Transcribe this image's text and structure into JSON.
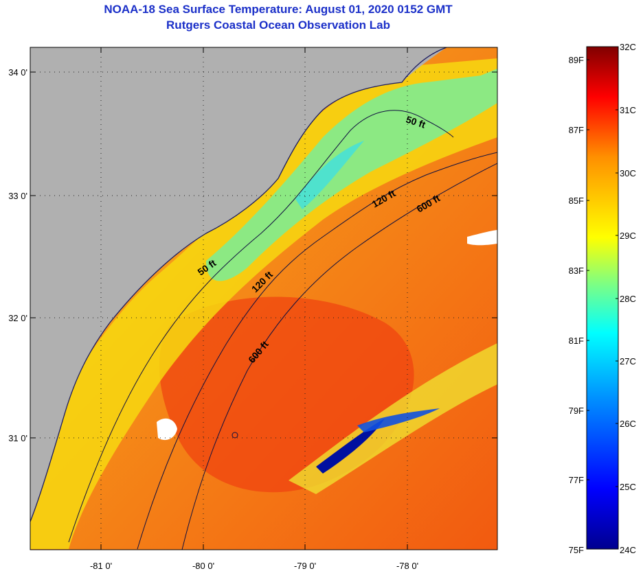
{
  "title": {
    "line1": "NOAA-18 Sea Surface Temperature:  August 01, 2020 0152 GMT",
    "line2": "Rutgers Coastal Ocean Observation Lab"
  },
  "map": {
    "lat_labels": [
      "34 0'",
      "33 0'",
      "32 0'",
      "31 0'"
    ],
    "lon_labels": [
      "-81 0'",
      "-80 0'",
      "-79 0'",
      "-78 0'"
    ],
    "isobaths": [
      "50 ft",
      "120 ft",
      "600 ft"
    ],
    "contour_labels": [
      "50 ft",
      "120 ft",
      "600 ft",
      "50 ft",
      "120 ft",
      "600 ft"
    ]
  },
  "colorbar": {
    "celsius": [
      "32C",
      "31C",
      "30C",
      "29C",
      "28C",
      "27C",
      "26C",
      "25C",
      "24C"
    ],
    "fahrenheit": [
      "89F",
      "87F",
      "85F",
      "83F",
      "81F",
      "79F",
      "77F",
      "75F"
    ],
    "range_c": [
      24,
      32
    ],
    "colors": [
      "#00008f",
      "#0000ff",
      "#0090ff",
      "#00ffff",
      "#80ff80",
      "#ffff00",
      "#ff9000",
      "#ff0000",
      "#800000"
    ]
  },
  "colors": {
    "title": "#1a2fc8",
    "land": "#b0b0b0",
    "ocean_warm": "#f25a10",
    "ocean_mid": "#f5d000",
    "ocean_cool": "#55f0b0"
  }
}
